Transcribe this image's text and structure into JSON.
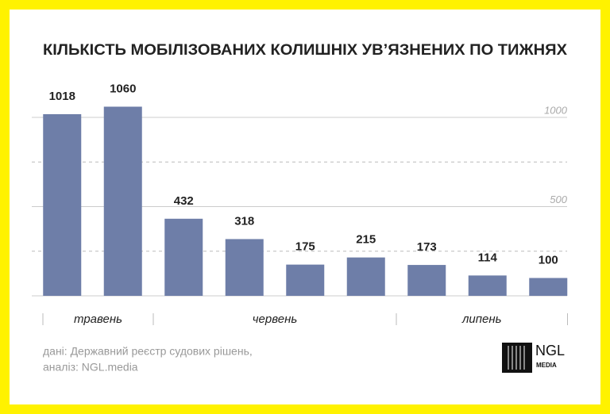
{
  "chart_data": {
    "type": "bar",
    "title": "КІЛЬКІСТЬ МОБІЛІЗОВАНИХ КОЛИШНІХ УВ’ЯЗНЕНИХ ПО ТИЖНЯХ",
    "categories": [
      null,
      null,
      null,
      null,
      null,
      null,
      null,
      null,
      null
    ],
    "values": [
      1018,
      1060,
      432,
      318,
      175,
      215,
      173,
      114,
      100
    ],
    "color": "#6e7ea8",
    "groups": [
      {
        "name": "травень",
        "count": 2
      },
      {
        "name": "червень",
        "count": 4
      },
      {
        "name": "липень",
        "count": 3
      }
    ],
    "ylim": [
      0,
      1100
    ],
    "yticks": [
      500,
      1000
    ],
    "minor_yticks": [
      250,
      750
    ],
    "grid": true
  },
  "source": [
    "дані: Державний реєстр судових рішень,",
    "аналіз: NGL.media"
  ],
  "logo": {
    "name": "NGL",
    "subtitle": "MEDIA"
  }
}
